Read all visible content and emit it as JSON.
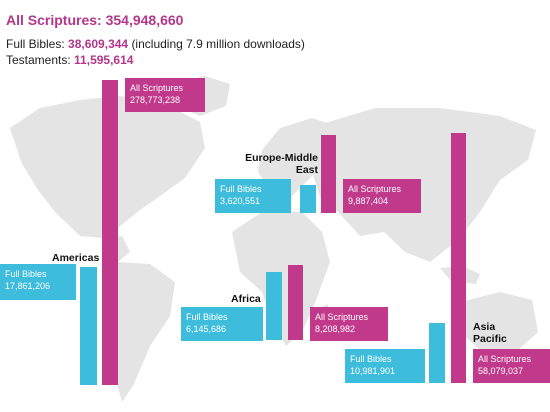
{
  "header": {
    "title_label": "All Scriptures:",
    "title_value": "354,948,660",
    "line1_label": "Full Bibles:",
    "line1_value": "38,609,344",
    "line1_note": "(including 7.9 million downloads)",
    "line2_label": "Testaments:",
    "line2_value": "11,595,614"
  },
  "colors": {
    "scriptures": "#c0398a",
    "bibles": "#3dbcdc",
    "map": "#e4e4e4",
    "title": "#b3368a"
  },
  "chart_data": {
    "type": "bar",
    "title": "All Scriptures: 354,948,660",
    "categories": [
      "Americas",
      "Europe-Middle East",
      "Africa",
      "Asia Pacific"
    ],
    "series": [
      {
        "name": "Full Bibles",
        "values": [
          17861206,
          3620551,
          6145686,
          10981901
        ]
      },
      {
        "name": "All Scriptures",
        "values": [
          278773238,
          9887404,
          8208982,
          58079037
        ]
      }
    ],
    "regions": [
      {
        "name_lines": [
          "Americas"
        ],
        "bibles_label": [
          "Full Bibles",
          "17,861,206"
        ],
        "scriptures_label": [
          "All Scriptures",
          "278,773,238"
        ]
      },
      {
        "name_lines": [
          "Europe-Middle",
          "East"
        ],
        "bibles_label": [
          "Full Bibles",
          "3,620,551"
        ],
        "scriptures_label": [
          "All Scriptures",
          "9,887,404"
        ]
      },
      {
        "name_lines": [
          "Africa"
        ],
        "bibles_label": [
          "Full Bibles",
          "6,145,686"
        ],
        "scriptures_label": [
          "All Scriptures",
          "8,208,982"
        ]
      },
      {
        "name_lines": [
          "Asia",
          "Pacific"
        ],
        "bibles_label": [
          "Full Bibles",
          "10,981,901"
        ],
        "scriptures_label": [
          "All Scriptures",
          "58,079,037"
        ]
      }
    ]
  }
}
